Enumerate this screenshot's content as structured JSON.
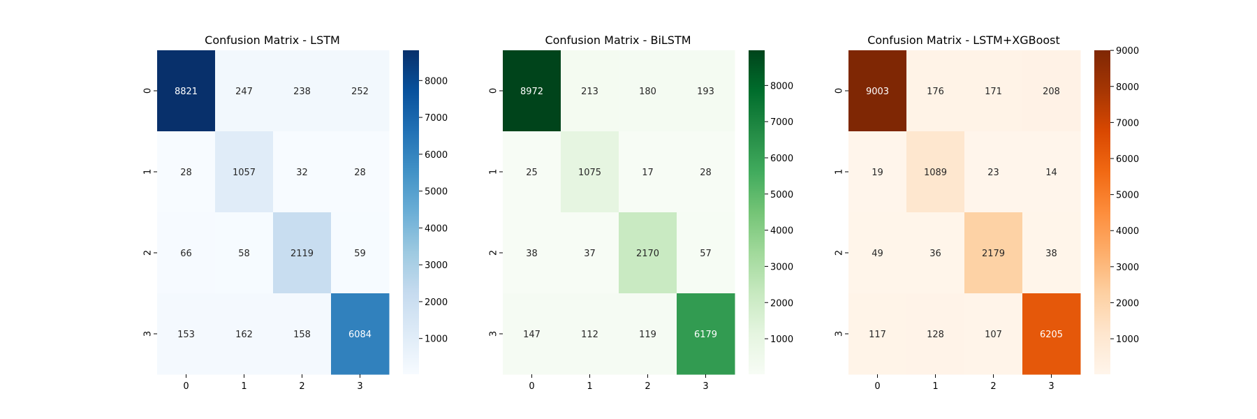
{
  "chart_data": [
    {
      "type": "heatmap",
      "title": "Confusion Matrix - LSTM",
      "colormap": "Blues",
      "x_tick_labels": [
        "0",
        "1",
        "2",
        "3"
      ],
      "y_tick_labels": [
        "0",
        "1",
        "2",
        "3"
      ],
      "values": [
        [
          8821,
          247,
          238,
          252
        ],
        [
          28,
          1057,
          32,
          28
        ],
        [
          66,
          58,
          2119,
          59
        ],
        [
          153,
          162,
          158,
          6084
        ]
      ],
      "colorbar_ticks": [
        1000,
        2000,
        3000,
        4000,
        5000,
        6000,
        7000,
        8000
      ],
      "colorbar_tick_labels": [
        "1000",
        "2000",
        "3000",
        "4000",
        "5000",
        "6000",
        "7000",
        "8000"
      ],
      "color_range": [
        28,
        8821
      ]
    },
    {
      "type": "heatmap",
      "title": "Confusion Matrix - BiLSTM",
      "colormap": "Greens",
      "x_tick_labels": [
        "0",
        "1",
        "2",
        "3"
      ],
      "y_tick_labels": [
        "0",
        "1",
        "2",
        "3"
      ],
      "values": [
        [
          8972,
          213,
          180,
          193
        ],
        [
          25,
          1075,
          17,
          28
        ],
        [
          38,
          37,
          2170,
          57
        ],
        [
          147,
          112,
          119,
          6179
        ]
      ],
      "colorbar_ticks": [
        1000,
        2000,
        3000,
        4000,
        5000,
        6000,
        7000,
        8000
      ],
      "colorbar_tick_labels": [
        "1000",
        "2000",
        "3000",
        "4000",
        "5000",
        "6000",
        "7000",
        "8000"
      ],
      "color_range": [
        17,
        8972
      ]
    },
    {
      "type": "heatmap",
      "title": "Confusion Matrix - LSTM+XGBoost",
      "colormap": "Oranges",
      "x_tick_labels": [
        "0",
        "1",
        "2",
        "3"
      ],
      "y_tick_labels": [
        "0",
        "1",
        "2",
        "3"
      ],
      "values": [
        [
          9003,
          176,
          171,
          208
        ],
        [
          19,
          1089,
          23,
          14
        ],
        [
          49,
          36,
          2179,
          38
        ],
        [
          117,
          128,
          107,
          6205
        ]
      ],
      "colorbar_ticks": [
        1000,
        2000,
        3000,
        4000,
        5000,
        6000,
        7000,
        8000,
        9000
      ],
      "colorbar_tick_labels": [
        "1000",
        "2000",
        "3000",
        "4000",
        "5000",
        "6000",
        "7000",
        "8000",
        "9000"
      ],
      "color_range": [
        14,
        9003
      ]
    }
  ],
  "colormaps": {
    "Blues": [
      "#f7fbff",
      "#deebf7",
      "#c6dbef",
      "#9ecae1",
      "#6baed6",
      "#4292c6",
      "#2171b5",
      "#08519c",
      "#08306b"
    ],
    "Greens": [
      "#f7fcf5",
      "#e5f5e0",
      "#c7e9c0",
      "#a1d99b",
      "#74c476",
      "#41ab5d",
      "#238b45",
      "#006d2c",
      "#00441b"
    ],
    "Oranges": [
      "#fff5eb",
      "#fee6ce",
      "#fdd0a2",
      "#fdae6b",
      "#fd8d3c",
      "#f16913",
      "#d94801",
      "#a63603",
      "#7f2704"
    ]
  }
}
